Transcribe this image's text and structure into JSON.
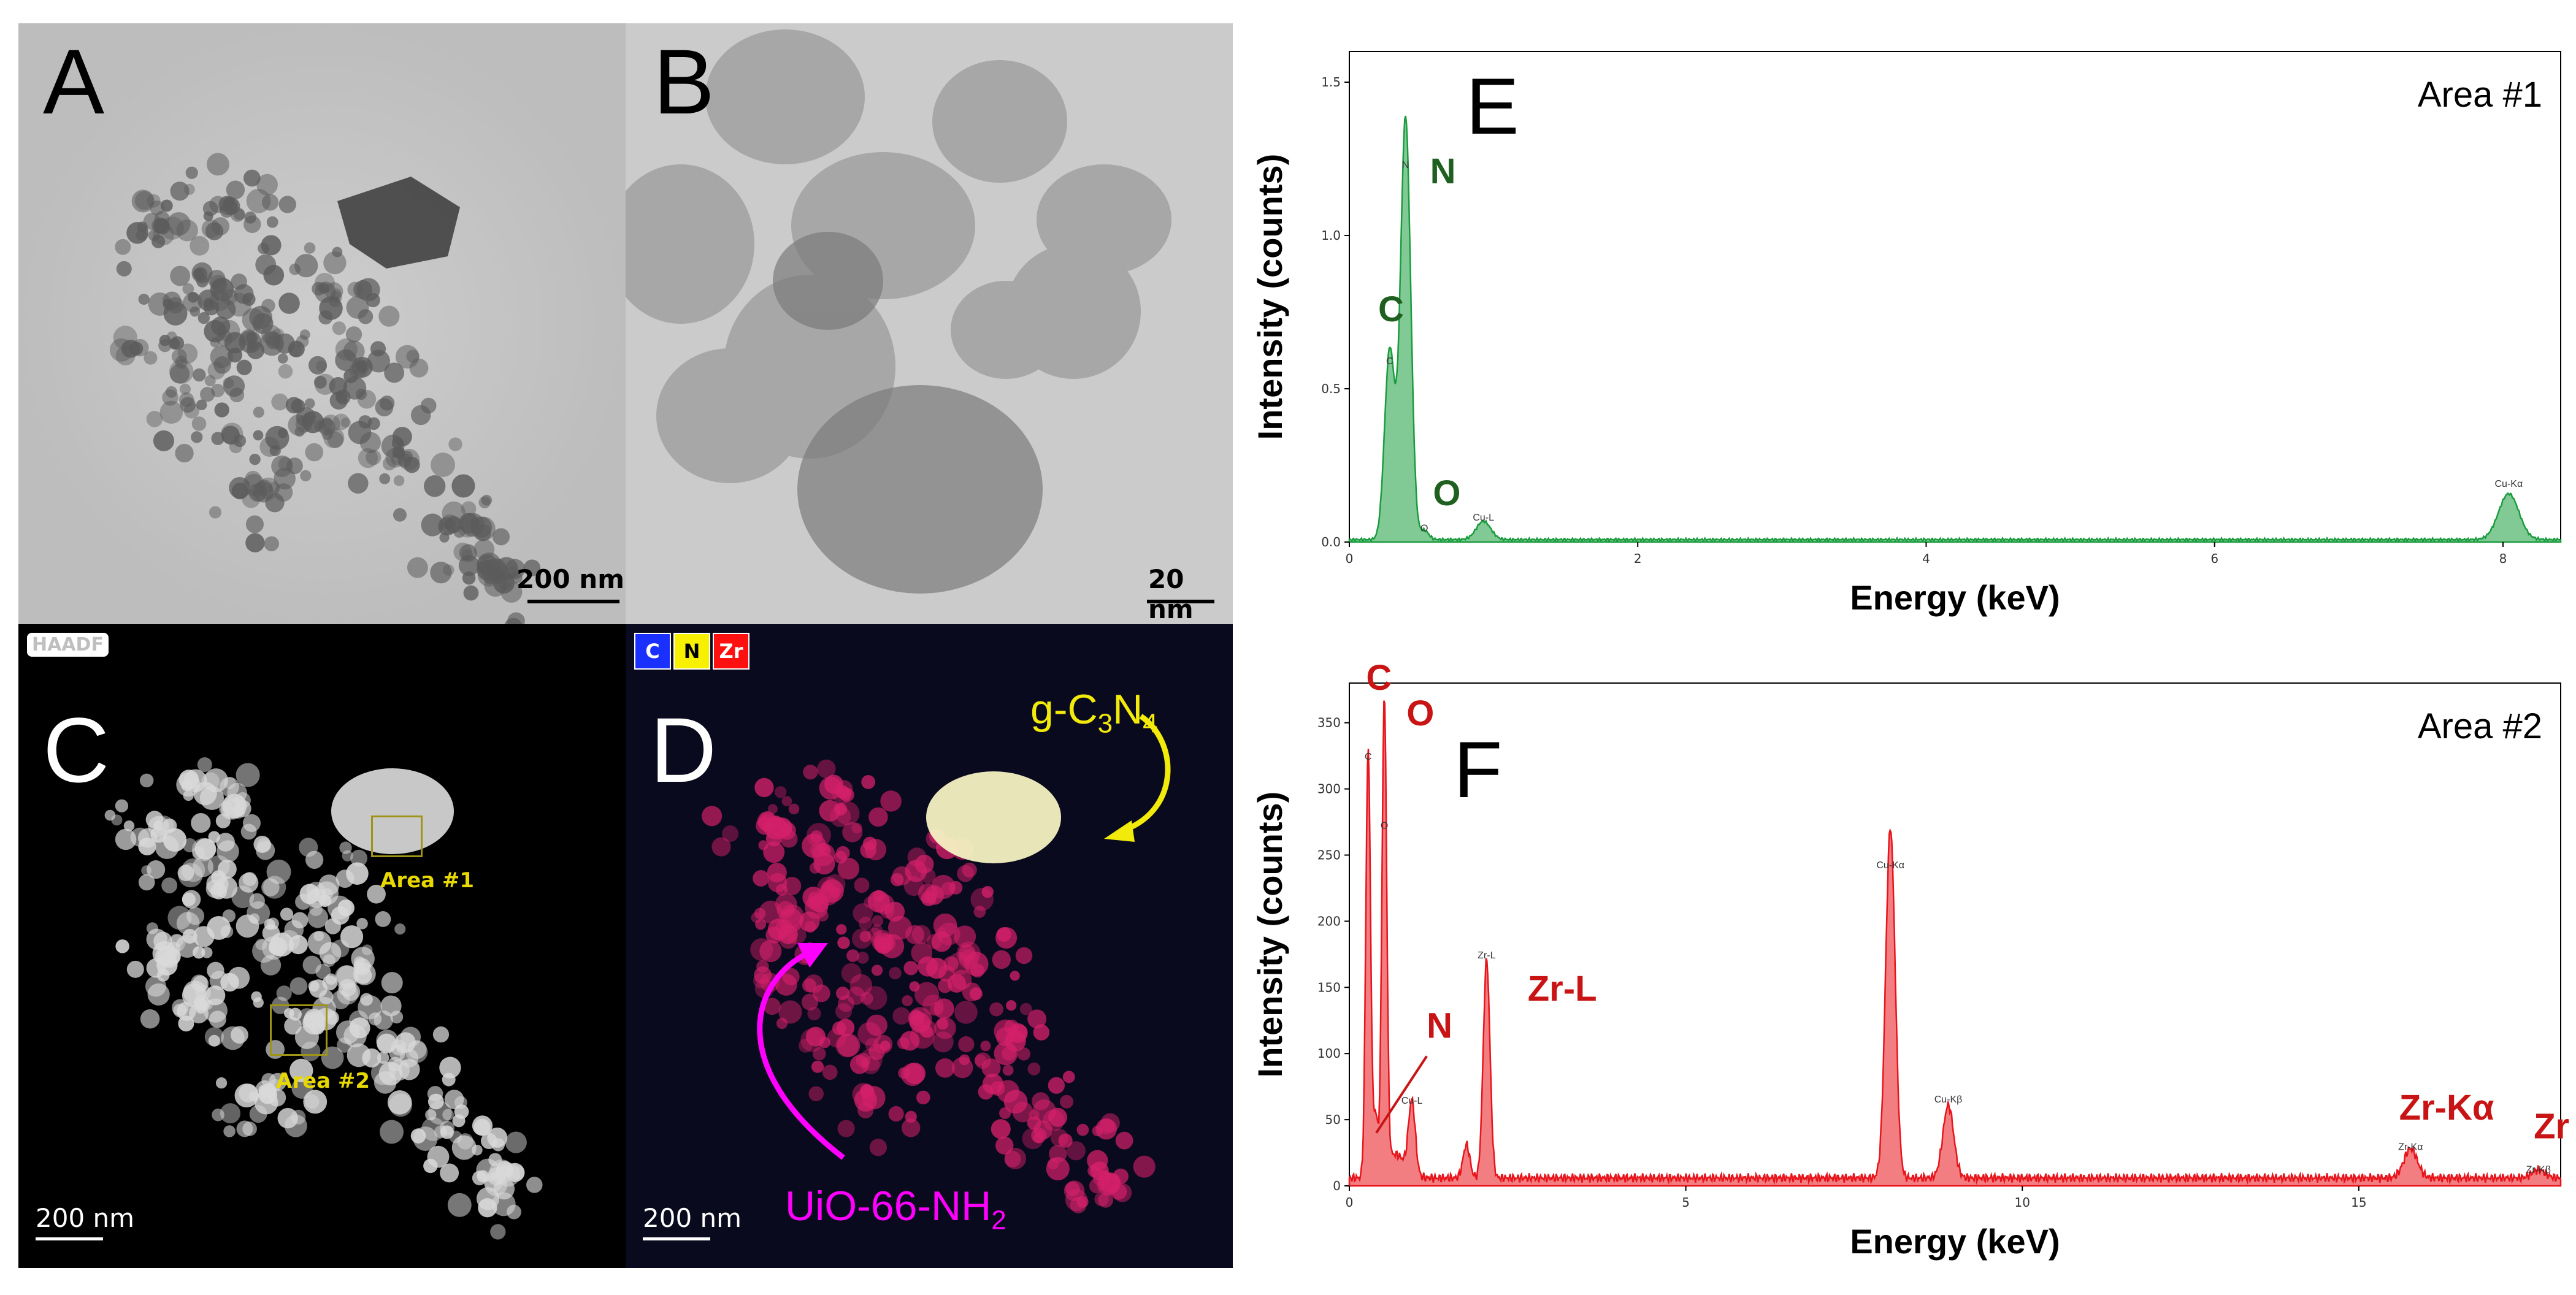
{
  "panels": {
    "A": {
      "label": "A",
      "scalebar": "200 nm"
    },
    "B": {
      "label": "B",
      "scalebar": "20 nm"
    },
    "C": {
      "label": "C",
      "scalebar": "200 nm",
      "badge": "HAADF",
      "areas": [
        "Area #1",
        "Area #2"
      ]
    },
    "D": {
      "label": "D",
      "scalebar": "200 nm",
      "legend": [
        "C",
        "N",
        "Zr"
      ],
      "annotations": {
        "gcn_main": "g-C",
        "gcn_sub1": "3",
        "gcn_mid": "N",
        "gcn_sub2": "4",
        "uio_main": "UiO-66-NH",
        "uio_sub": "2"
      }
    },
    "E": {
      "label": "E"
    },
    "F": {
      "label": "F"
    }
  },
  "colors": {
    "green": "#1a9c3e",
    "green_label": "#1f5f1f",
    "red": "#e8141b",
    "red_label": "#c81414",
    "yellow": "#f2ea0a",
    "magenta": "#ff00ff"
  },
  "chart_data": [
    {
      "type": "line",
      "panel": "E",
      "title": "Area #1",
      "xlabel": "Energy (keV)",
      "ylabel": "Intensity (counts)",
      "xlim": [
        0,
        8.4
      ],
      "ylim": [
        0,
        1.6
      ],
      "xticks": [
        0,
        2,
        4,
        6,
        8
      ],
      "xtick_labels": [
        "0",
        "2",
        "4",
        "6",
        "8"
      ],
      "yticks": [
        0,
        0.5,
        1.0,
        1.5
      ],
      "ytick_labels": [
        "0.0",
        "0.5",
        "1.0",
        "1.5"
      ],
      "series": [
        {
          "peaks": [
            {
              "x": 0.28,
              "y": 0.62,
              "w": 0.035
            },
            {
              "x": 0.39,
              "y": 1.38,
              "w": 0.035
            },
            {
              "x": 0.52,
              "y": 0.03,
              "w": 0.03
            },
            {
              "x": 0.93,
              "y": 0.06,
              "w": 0.05
            },
            {
              "x": 8.04,
              "y": 0.15,
              "w": 0.07
            }
          ],
          "baseline": 0.008
        }
      ],
      "peak_labels": [
        {
          "text": "C",
          "x": 0.2,
          "y": 0.72,
          "big": true
        },
        {
          "text": "N",
          "x": 0.56,
          "y": 1.17,
          "big": true
        },
        {
          "text": "O",
          "x": 0.58,
          "y": 0.12,
          "big": true
        },
        {
          "text": "C",
          "x": 0.28,
          "y": 0.58,
          "big": false
        },
        {
          "text": "N",
          "x": 0.39,
          "y": 1.22,
          "big": false
        },
        {
          "text": "O",
          "x": 0.52,
          "y": 0.035,
          "big": false
        },
        {
          "text": "Cu-L",
          "x": 0.93,
          "y": 0.07,
          "big": false
        },
        {
          "text": "Cu-Kα",
          "x": 8.04,
          "y": 0.18,
          "big": false
        }
      ]
    },
    {
      "type": "line",
      "panel": "F",
      "title": "Area #2",
      "xlabel": "Energy (keV)",
      "ylabel": "Intensity (counts)",
      "xlim": [
        0,
        18
      ],
      "ylim": [
        0,
        380
      ],
      "xticks": [
        0,
        5,
        10,
        15
      ],
      "xtick_labels": [
        "0",
        "5",
        "10",
        "15"
      ],
      "yticks": [
        0,
        50,
        100,
        150,
        200,
        250,
        300,
        350
      ],
      "ytick_labels": [
        "0",
        "50",
        "100",
        "150",
        "200",
        "250",
        "300",
        "350"
      ],
      "series": [
        {
          "peaks": [
            {
              "x": 0.28,
              "y": 325,
              "w": 0.035
            },
            {
              "x": 0.39,
              "y": 45,
              "w": 0.035
            },
            {
              "x": 0.52,
              "y": 355,
              "w": 0.035
            },
            {
              "x": 0.68,
              "y": 18,
              "w": 0.15
            },
            {
              "x": 0.93,
              "y": 55,
              "w": 0.05
            },
            {
              "x": 1.74,
              "y": 25,
              "w": 0.05
            },
            {
              "x": 2.04,
              "y": 165,
              "w": 0.05
            },
            {
              "x": 8.04,
              "y": 265,
              "w": 0.07
            },
            {
              "x": 8.9,
              "y": 55,
              "w": 0.08
            },
            {
              "x": 15.77,
              "y": 22,
              "w": 0.1
            },
            {
              "x": 17.67,
              "y": 6,
              "w": 0.1
            }
          ],
          "baseline": 6
        }
      ],
      "peak_labels": [
        {
          "text": "C",
          "x": 0.25,
          "y": 375,
          "big": true
        },
        {
          "text": "O",
          "x": 0.85,
          "y": 348,
          "big": true
        },
        {
          "text": "N",
          "x": 1.15,
          "y": 112,
          "big": true
        },
        {
          "text": "Zr-L",
          "x": 2.65,
          "y": 140,
          "big": true
        },
        {
          "text": "Zr-Kα",
          "x": 15.6,
          "y": 50,
          "big": true
        },
        {
          "text": "Zr-Kβ",
          "x": 17.6,
          "y": 36,
          "big": true
        },
        {
          "text": "C",
          "x": 0.28,
          "y": 322,
          "big": false
        },
        {
          "text": "O",
          "x": 0.52,
          "y": 270,
          "big": false
        },
        {
          "text": "Zr-L",
          "x": 2.04,
          "y": 172,
          "big": false
        },
        {
          "text": "Cu-L",
          "x": 0.93,
          "y": 62,
          "big": false
        },
        {
          "text": "Cu-Kα",
          "x": 8.04,
          "y": 240,
          "big": false
        },
        {
          "text": "Cu-Kβ",
          "x": 8.9,
          "y": 63,
          "big": false
        },
        {
          "text": "Zr-Kα",
          "x": 15.77,
          "y": 27,
          "big": false
        },
        {
          "text": "Zr-Kβ",
          "x": 17.67,
          "y": 10,
          "big": false
        }
      ]
    }
  ]
}
